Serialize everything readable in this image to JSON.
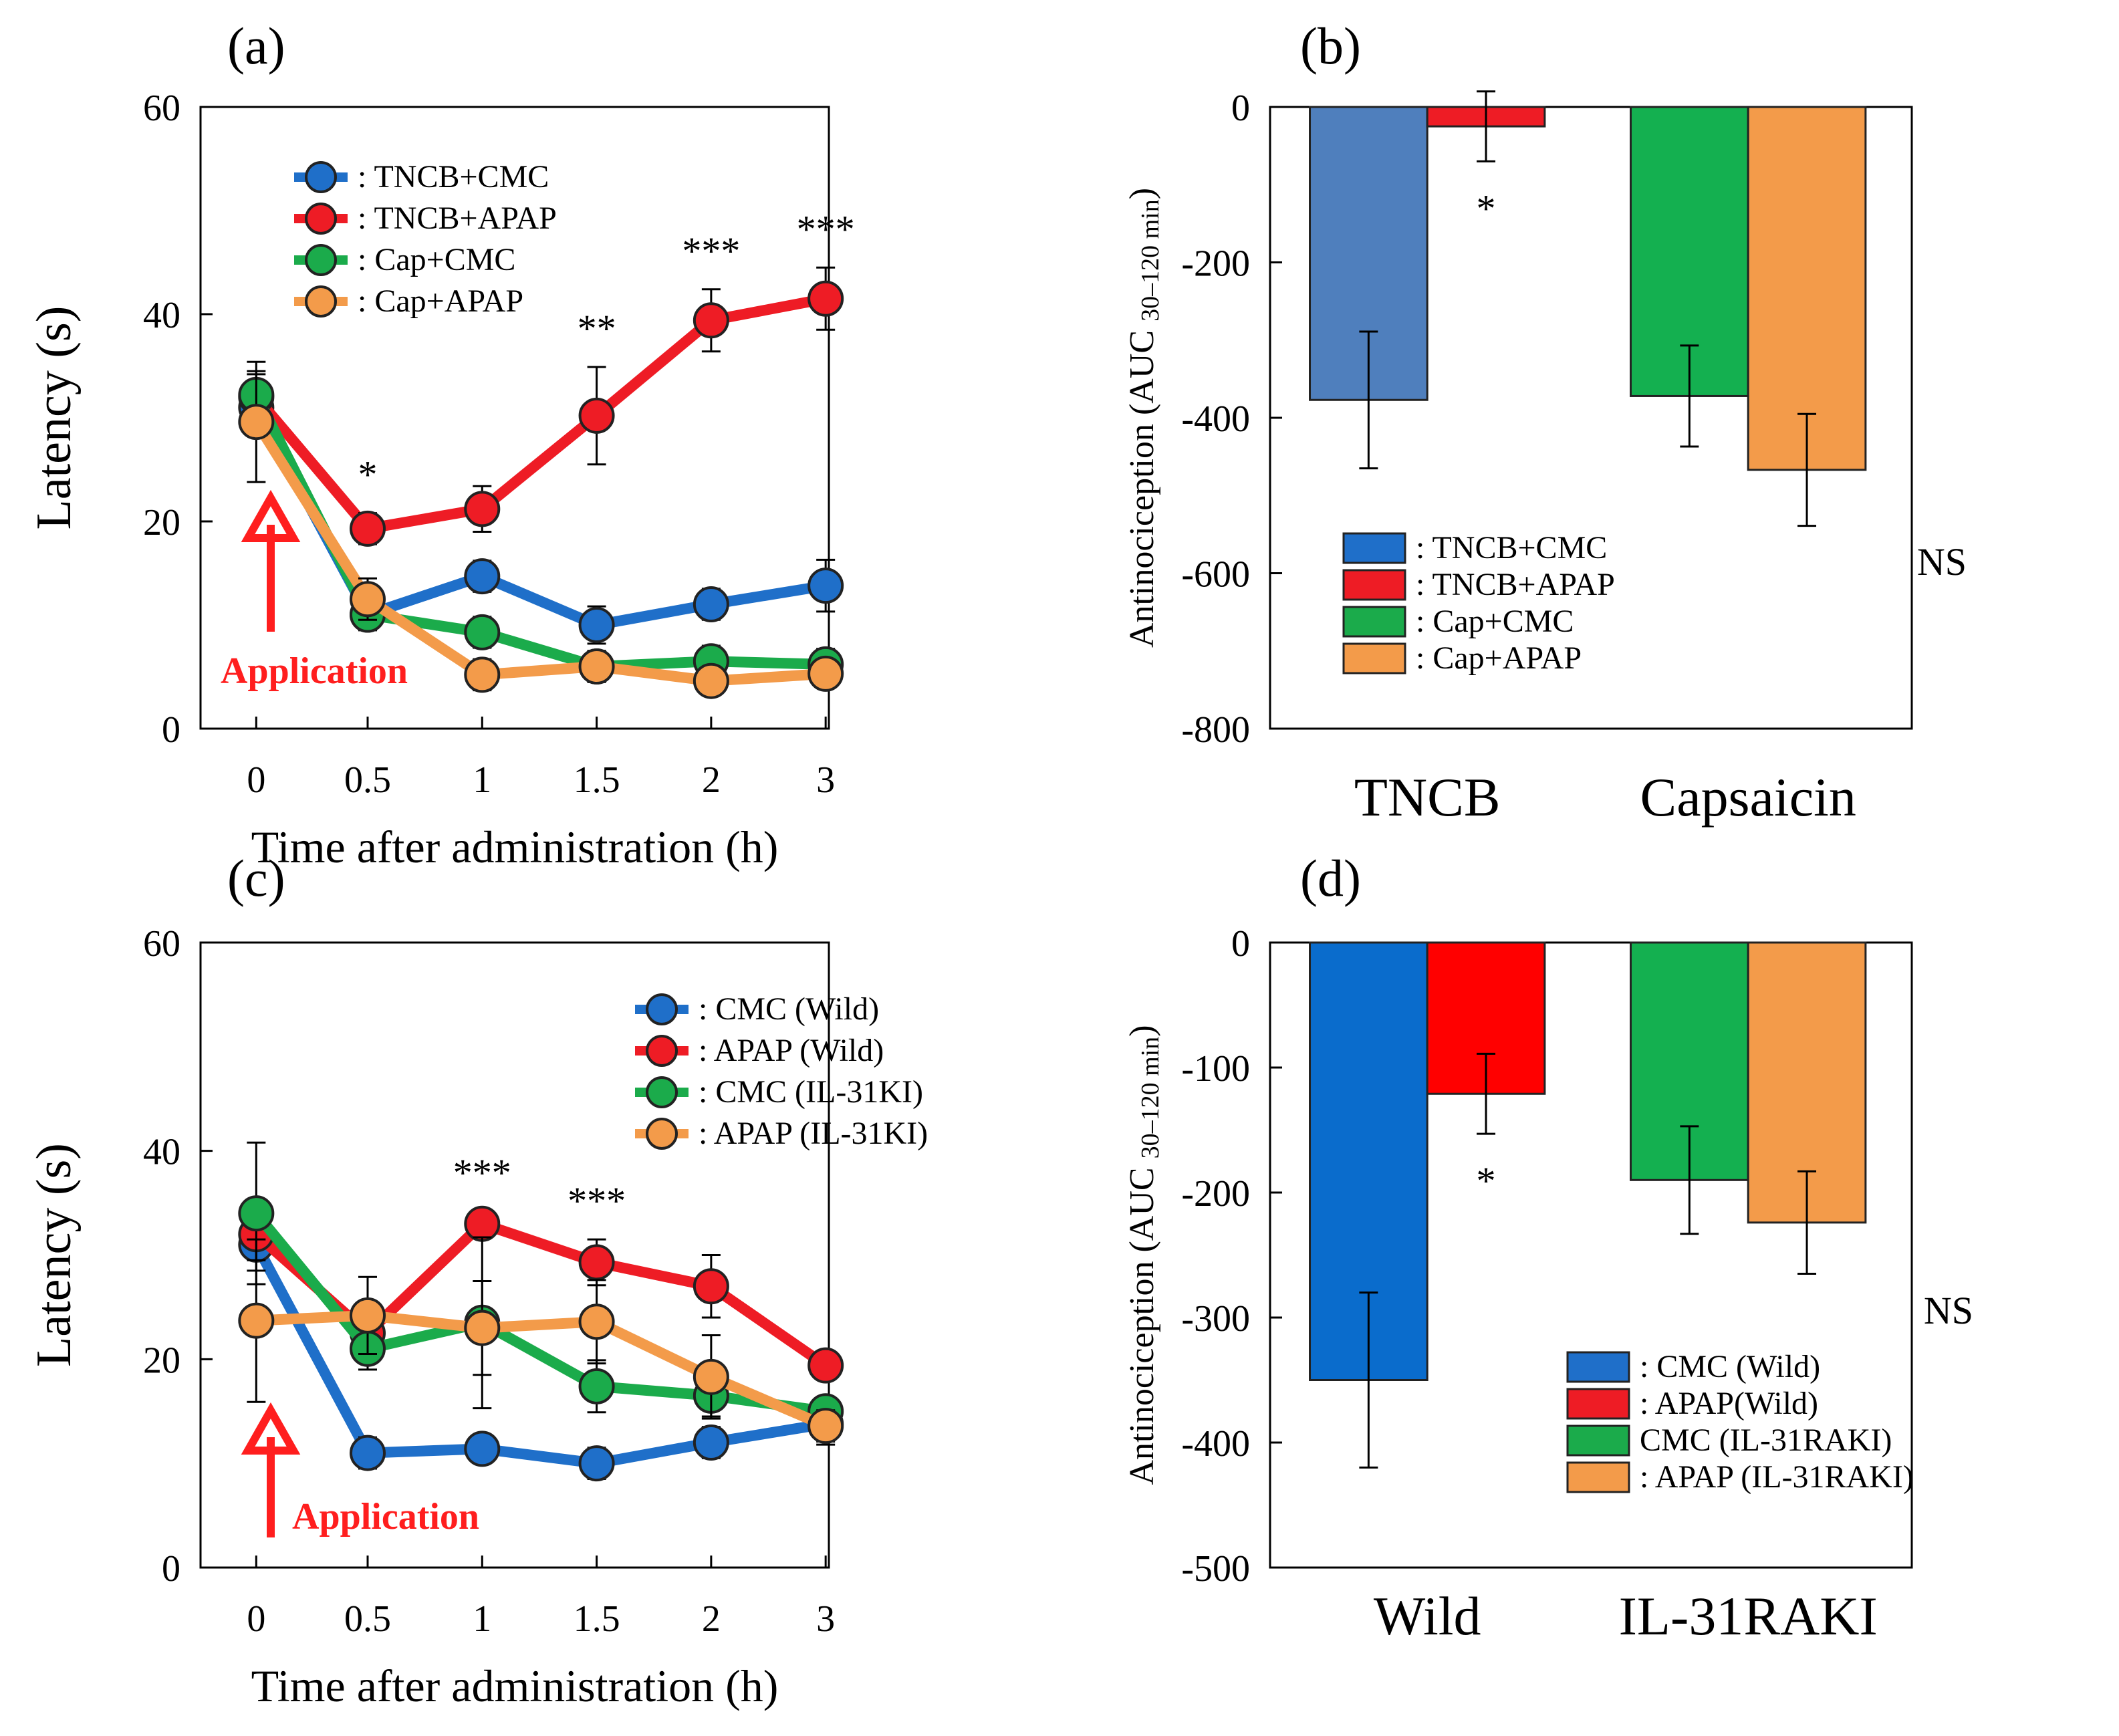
{
  "chart_data": [
    {
      "panel": "(a)",
      "type": "line",
      "xlabel": "Time after administration (h)",
      "ylabel": "Latency (s)",
      "ylim": [
        0,
        60
      ],
      "yticks": [
        0,
        20,
        40,
        60
      ],
      "x_categories": [
        "0",
        "0.5",
        "1",
        "1.5",
        "2",
        "3"
      ],
      "series": [
        {
          "name": ": TNCB+CMC",
          "color": "#1f6fc9",
          "values": [
            31,
            11,
            14.7,
            10,
            12,
            13.8
          ],
          "errors": [
            2.5,
            1.5,
            1.5,
            1.8,
            1.5,
            2.5
          ]
        },
        {
          "name": ": TNCB+APAP",
          "color": "#ee1c25",
          "values": [
            32,
            19.3,
            21.2,
            30.2,
            39.4,
            41.5
          ],
          "errors": [
            2.5,
            1.5,
            2.2,
            4.7,
            3,
            3
          ]
        },
        {
          "name": ": Cap+CMC",
          "color": "#1bab4b",
          "values": [
            32.2,
            11,
            9.3,
            6,
            6.5,
            6.2
          ],
          "errors": [
            2,
            1.5,
            1.5,
            1.5,
            1.5,
            1.5
          ]
        },
        {
          "name": ": Cap+APAP",
          "color": "#f39b4a",
          "values": [
            29.6,
            12.5,
            5.2,
            6,
            4.6,
            5.3
          ],
          "errors": [
            5.8,
            2,
            1.5,
            1.5,
            1.2,
            1.2
          ]
        }
      ],
      "annotations": [
        {
          "x": "0.5",
          "text": "*"
        },
        {
          "x": "1.5",
          "text": "**"
        },
        {
          "x": "2",
          "text": "***"
        },
        {
          "x": "3",
          "text": "***"
        }
      ],
      "arrow_label": "Application",
      "legend_position": "top-left"
    },
    {
      "panel": "(b)",
      "type": "bar",
      "ylabel": "Antinociception (AUC",
      "ylabel_sub": "30–120 min",
      "ylabel_close": ")",
      "ylim": [
        -800,
        0
      ],
      "yticks": [
        0,
        -200,
        -400,
        -600,
        -800
      ],
      "categories": [
        "TNCB",
        "Capsaicin"
      ],
      "series": [
        {
          "name": ": TNCB+CMC",
          "color": "#4f7fbd",
          "legend_color": "#1f6fc9",
          "category": 0,
          "value": -377,
          "error": 88
        },
        {
          "name": ": TNCB+APAP",
          "color": "#ee1c25",
          "legend_color": "#ee1c25",
          "category": 0,
          "value": -25,
          "error": 45
        },
        {
          "name": ": Cap+CMC",
          "color": "#14b050",
          "legend_color": "#1bab4b",
          "category": 1,
          "value": -372,
          "error": 65
        },
        {
          "name": ": Cap+APAP",
          "color": "#f39b4a",
          "legend_color": "#f39b4a",
          "category": 1,
          "value": -467,
          "error": 72
        }
      ],
      "annotations": [
        {
          "target": "TNCB+APAP",
          "text": "*"
        },
        {
          "target": "Capsaicin",
          "text": "NS"
        }
      ],
      "legend_position": "bottom-left"
    },
    {
      "panel": "(c)",
      "type": "line",
      "xlabel": "Time after administration (h)",
      "ylabel": "Latency (s)",
      "ylim": [
        0,
        60
      ],
      "yticks": [
        0,
        20,
        40,
        60
      ],
      "x_categories": [
        "0",
        "0.5",
        "1",
        "1.5",
        "2",
        "3"
      ],
      "series": [
        {
          "name": ": CMC (Wild)",
          "color": "#1f6fc9",
          "values": [
            31,
            11,
            11.4,
            10,
            12,
            13.8
          ],
          "errors": [
            2.5,
            1.5,
            1.2,
            1.5,
            1.5,
            2
          ]
        },
        {
          "name": ": APAP (Wild)",
          "color": "#ee1c25",
          "values": [
            32,
            22.5,
            33,
            29.3,
            27,
            19.4
          ],
          "errors": [
            2.5,
            2.2,
            1.2,
            2.2,
            3,
            1.2
          ]
        },
        {
          "name": ": CMC (IL-31KI)",
          "color": "#1bab4b",
          "values": [
            34,
            21,
            23.5,
            17.4,
            16.5,
            15
          ],
          "errors": [
            6.8,
            2,
            8.2,
            2.5,
            2,
            1.2
          ]
        },
        {
          "name": ": APAP (IL-31KI)",
          "color": "#f39b4a",
          "values": [
            23.7,
            24.2,
            23,
            23.6,
            18.3,
            13.6
          ],
          "errors": [
            7.8,
            3.7,
            4.5,
            4,
            4,
            1.5
          ]
        }
      ],
      "annotations": [
        {
          "x": "1",
          "text": "***"
        },
        {
          "x": "1.5",
          "text": "***"
        }
      ],
      "arrow_label": "Application",
      "legend_position": "top-right"
    },
    {
      "panel": "(d)",
      "type": "bar",
      "ylabel": "Antinociception (AUC",
      "ylabel_sub": "30–120 min",
      "ylabel_close": ")",
      "ylim": [
        -500,
        0
      ],
      "yticks": [
        0,
        -100,
        -200,
        -300,
        -400,
        -500
      ],
      "categories": [
        "Wild",
        "IL-31RAKI"
      ],
      "series": [
        {
          "name": ": CMC (Wild)",
          "color": "#0a6ccc",
          "legend_color": "#1f6fc9",
          "category": 0,
          "value": -350,
          "error": 70
        },
        {
          "name": ": APAP(Wild)",
          "color": "#ff0000",
          "legend_color": "#ee1c25",
          "category": 0,
          "value": -121,
          "error": 32
        },
        {
          "name": "CMC (IL-31RAKI)",
          "color": "#14b050",
          "legend_color": "#1bab4b",
          "category": 1,
          "value": -190,
          "error": 43
        },
        {
          "name": ": APAP (IL-31RAKI)",
          "color": "#f39b4a",
          "legend_color": "#f39b4a",
          "category": 1,
          "value": -224,
          "error": 41
        }
      ],
      "annotations": [
        {
          "target": "APAP(Wild)",
          "text": "*"
        },
        {
          "target": "IL-31RAKI",
          "text": "NS"
        }
      ],
      "legend_position": "bottom-center"
    }
  ]
}
